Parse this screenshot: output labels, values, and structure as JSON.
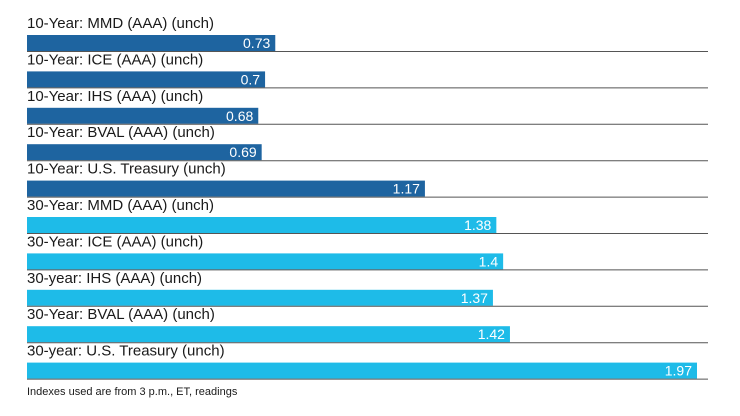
{
  "chart_data": {
    "type": "bar",
    "orientation": "horizontal",
    "categories": [
      "10-Year: MMD (AAA) (unch)",
      "10-Year: ICE (AAA) (unch)",
      "10-Year: IHS (AAA) (unch)",
      "10-Year: BVAL (AAA) (unch)",
      "10-Year: U.S. Treasury (unch)",
      "30-Year: MMD (AAA) (unch)",
      "30-Year: ICE (AAA) (unch)",
      "30-year: IHS (AAA) (unch)",
      "30-Year: BVAL (AAA) (unch)",
      "30-year: U.S. Treasury (unch)"
    ],
    "values": [
      0.73,
      0.7,
      0.68,
      0.69,
      1.17,
      1.38,
      1.4,
      1.37,
      1.42,
      1.97
    ],
    "value_labels": [
      "0.73",
      "0.7",
      "0.68",
      "0.69",
      "1.17",
      "1.38",
      "1.4",
      "1.37",
      "1.42",
      "1.97"
    ],
    "bar_colors": [
      "#1e64a0",
      "#1e64a0",
      "#1e64a0",
      "#1e64a0",
      "#1e64a0",
      "#1ebbe8",
      "#1ebbe8",
      "#1ebbe8",
      "#1ebbe8",
      "#1ebbe8"
    ],
    "xlim": [
      0,
      2.0
    ],
    "grid": false,
    "legend": "none",
    "title": "",
    "xlabel": "",
    "ylabel": ""
  },
  "note": "Indexes used are from 3 p.m., ET, readings",
  "colors": {
    "ten_year": "#1e64a0",
    "thirty_year": "#1ebbe8",
    "separator": "#555555",
    "text": "#1a1a1a"
  }
}
